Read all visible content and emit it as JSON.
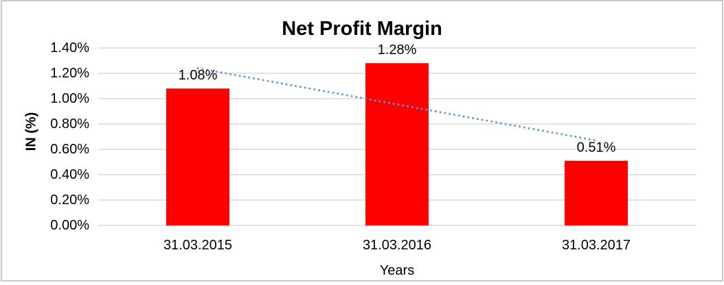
{
  "frame": {
    "border_color": "#c9c9c9",
    "background": "#ffffff"
  },
  "chart_data": {
    "type": "bar",
    "title": "Net Profit Margin",
    "xlabel": "Years",
    "ylabel": "IN (%)",
    "categories": [
      "31.03.2015",
      "31.03.2016",
      "31.03.2017"
    ],
    "values": [
      1.08,
      1.28,
      0.51
    ],
    "data_labels": [
      "1.08%",
      "1.28%",
      "0.51%"
    ],
    "ylim": [
      0,
      1.4
    ],
    "ytick_step": 0.2,
    "ytick_labels": [
      "0.00%",
      "0.20%",
      "0.40%",
      "0.60%",
      "0.80%",
      "1.00%",
      "1.20%",
      "1.40%"
    ],
    "grid": true,
    "legend": "none",
    "bar_color": "#ff0000",
    "gridline_color": "#d9d9d9",
    "text_color": "#000000",
    "trendline": {
      "type": "linear",
      "style": "dotted",
      "color": "#5b9bd5",
      "start_value": 1.24,
      "end_value": 0.67
    }
  }
}
